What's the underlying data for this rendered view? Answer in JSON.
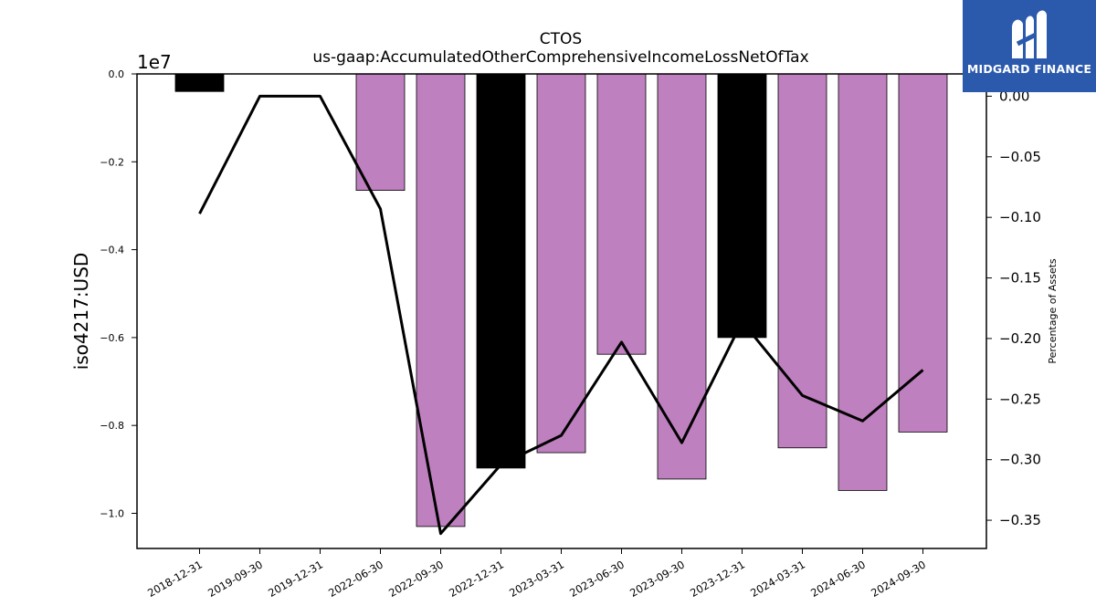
{
  "chart_data": {
    "type": "bar",
    "title": "CTOS",
    "subtitle": "us-gaap:AccumulatedOtherComprehensiveIncomeLossNetOfTax",
    "ylabel": "iso4217:USD",
    "y_offset_label": "1e7",
    "y2label": "Percentage of Assets",
    "categories": [
      "2018-12-31",
      "2019-09-30",
      "2019-12-31",
      "2022-06-30",
      "2022-09-30",
      "2022-12-31",
      "2023-03-31",
      "2023-06-30",
      "2023-09-30",
      "2023-12-31",
      "2024-03-31",
      "2024-06-30",
      "2024-09-30"
    ],
    "series": [
      {
        "type": "bar",
        "values": [
          -0.04,
          0.0,
          0.0,
          -0.265,
          -1.03,
          -0.897,
          -0.862,
          -0.638,
          -0.922,
          -0.6,
          -0.851,
          -0.948,
          -0.815
        ],
        "bar_colors": [
          "#000000",
          "#bf80bf",
          "#bf80bf",
          "#bf80bf",
          "#bf80bf",
          "#000000",
          "#bf80bf",
          "#bf80bf",
          "#bf80bf",
          "#000000",
          "#bf80bf",
          "#bf80bf",
          "#bf80bf"
        ]
      },
      {
        "type": "line",
        "axis": "right",
        "values": [
          -0.097,
          0.0,
          0.0,
          -0.093,
          -0.361,
          -0.304,
          -0.28,
          -0.203,
          -0.286,
          -0.186,
          -0.247,
          -0.268,
          -0.226
        ],
        "color": "#000000"
      }
    ],
    "ylim": [
      -1.08,
      0.0
    ],
    "yticks": [
      0.0,
      -0.2,
      -0.4,
      -0.6,
      -0.8,
      -1.0
    ],
    "ytick_labels": [
      "0.0",
      "−0.2",
      "−0.4",
      "−0.6",
      "−0.8",
      "−1.0"
    ],
    "y2lim": [
      -0.3733,
      0.0184
    ],
    "y2ticks": [
      0.0,
      -0.05,
      -0.1,
      -0.15,
      -0.2,
      -0.25,
      -0.3,
      -0.35
    ],
    "y2tick_labels": [
      "0.00",
      "−0.05",
      "−0.10",
      "−0.15",
      "−0.20",
      "−0.25",
      "−0.30",
      "−0.35"
    ]
  },
  "logo": {
    "text": "MIDGARD FINANCE",
    "bg": "#2b5aad"
  }
}
